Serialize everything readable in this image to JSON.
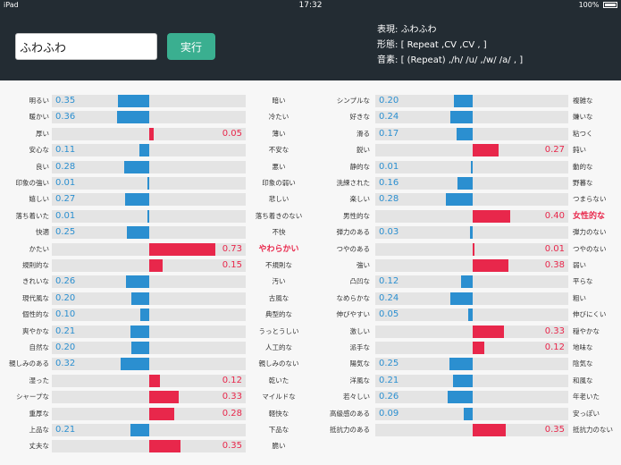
{
  "status": {
    "device": "iPad",
    "time": "17:32",
    "battery": "100%"
  },
  "search": {
    "value": "ふわふわ",
    "button_label": "実行"
  },
  "info": {
    "lines": [
      {
        "label": "表現:",
        "value": "ふわふわ"
      },
      {
        "label": "形態:",
        "value": "[ Repeat ,CV ,CV , ]"
      },
      {
        "label": "音素:",
        "value": "[ (Repeat) ,/h/ /u/ ,/w/ /a/ , ]"
      }
    ]
  },
  "scales": {
    "left": [
      {
        "left": "明るい",
        "right": "暗い",
        "value": -0.35,
        "value_text": "0.35"
      },
      {
        "left": "暖かい",
        "right": "冷たい",
        "value": -0.36,
        "value_text": "0.36"
      },
      {
        "left": "厚い",
        "right": "薄い",
        "value": 0.05,
        "value_text": "0.05"
      },
      {
        "left": "安心な",
        "right": "不安な",
        "value": -0.11,
        "value_text": "0.11"
      },
      {
        "left": "良い",
        "right": "悪い",
        "value": -0.28,
        "value_text": "0.28"
      },
      {
        "left": "印象の強い",
        "right": "印象の弱い",
        "value": -0.01,
        "value_text": "0.01"
      },
      {
        "left": "嬉しい",
        "right": "悲しい",
        "value": -0.27,
        "value_text": "0.27"
      },
      {
        "left": "落ち着いた",
        "right": "落ち着きのない",
        "value": -0.01,
        "value_text": "0.01"
      },
      {
        "left": "快適",
        "right": "不快",
        "value": -0.25,
        "value_text": "0.25"
      },
      {
        "left": "かたい",
        "right": "やわらかい",
        "value": 0.73,
        "value_text": "0.73",
        "highlight": true
      },
      {
        "left": "規則的な",
        "right": "不規則な",
        "value": 0.15,
        "value_text": "0.15"
      },
      {
        "left": "きれいな",
        "right": "汚い",
        "value": -0.26,
        "value_text": "0.26"
      },
      {
        "left": "現代風な",
        "right": "古風な",
        "value": -0.2,
        "value_text": "0.20"
      },
      {
        "left": "個性的な",
        "right": "典型的な",
        "value": -0.1,
        "value_text": "0.10"
      },
      {
        "left": "爽やかな",
        "right": "うっとうしい",
        "value": -0.21,
        "value_text": "0.21"
      },
      {
        "left": "自然な",
        "right": "人工的な",
        "value": -0.2,
        "value_text": "0.20"
      },
      {
        "left": "親しみのある",
        "right": "親しみのない",
        "value": -0.32,
        "value_text": "0.32"
      },
      {
        "left": "湿った",
        "right": "乾いた",
        "value": 0.12,
        "value_text": "0.12"
      },
      {
        "left": "シャープな",
        "right": "マイルドな",
        "value": 0.33,
        "value_text": "0.33"
      },
      {
        "left": "重厚な",
        "right": "軽快な",
        "value": 0.28,
        "value_text": "0.28"
      },
      {
        "left": "上品な",
        "right": "下品な",
        "value": -0.21,
        "value_text": "0.21"
      },
      {
        "left": "丈夫な",
        "right": "脆い",
        "value": 0.35,
        "value_text": "0.35"
      }
    ],
    "right": [
      {
        "left": "シンプルな",
        "right": "複雑な",
        "value": -0.2,
        "value_text": "0.20"
      },
      {
        "left": "好きな",
        "right": "嫌いな",
        "value": -0.24,
        "value_text": "0.24"
      },
      {
        "left": "滑る",
        "right": "粘つく",
        "value": -0.17,
        "value_text": "0.17"
      },
      {
        "left": "鋭い",
        "right": "鈍い",
        "value": 0.27,
        "value_text": "0.27"
      },
      {
        "left": "静的な",
        "right": "動的な",
        "value": -0.01,
        "value_text": "0.01"
      },
      {
        "left": "洗練された",
        "right": "野暮な",
        "value": -0.16,
        "value_text": "0.16"
      },
      {
        "left": "楽しい",
        "right": "つまらない",
        "value": -0.28,
        "value_text": "0.28"
      },
      {
        "left": "男性的な",
        "right": "女性的な",
        "value": 0.4,
        "value_text": "0.40",
        "highlight": true
      },
      {
        "left": "弾力のある",
        "right": "弾力のない",
        "value": -0.03,
        "value_text": "0.03"
      },
      {
        "left": "つやのある",
        "right": "つやのない",
        "value": 0.01,
        "value_text": "0.01"
      },
      {
        "left": "強い",
        "right": "弱い",
        "value": 0.38,
        "value_text": "0.38"
      },
      {
        "left": "凸凹な",
        "right": "平らな",
        "value": -0.12,
        "value_text": "0.12"
      },
      {
        "left": "なめらかな",
        "right": "粗い",
        "value": -0.24,
        "value_text": "0.24"
      },
      {
        "left": "伸びやすい",
        "right": "伸びにくい",
        "value": -0.05,
        "value_text": "0.05"
      },
      {
        "left": "激しい",
        "right": "穏やかな",
        "value": 0.33,
        "value_text": "0.33"
      },
      {
        "left": "派手な",
        "right": "地味な",
        "value": 0.12,
        "value_text": "0.12"
      },
      {
        "left": "陽気な",
        "right": "陰気な",
        "value": -0.25,
        "value_text": "0.25"
      },
      {
        "left": "洋風な",
        "right": "和風な",
        "value": -0.21,
        "value_text": "0.21"
      },
      {
        "left": "若々しい",
        "right": "年老いた",
        "value": -0.26,
        "value_text": "0.26"
      },
      {
        "left": "高級感のある",
        "right": "安っぽい",
        "value": -0.09,
        "value_text": "0.09"
      },
      {
        "left": "抵抗力のある",
        "right": "抵抗力のない",
        "value": 0.35,
        "value_text": "0.35"
      }
    ]
  },
  "colors": {
    "negative": "#2b8fd0",
    "positive": "#e8274b",
    "header": "#232c33",
    "button": "#3aaf90"
  }
}
